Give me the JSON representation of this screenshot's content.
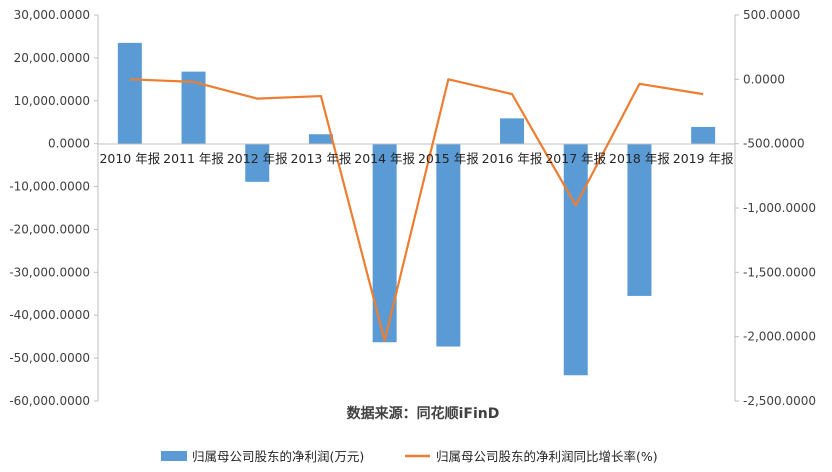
{
  "chart_data": {
    "type": "bar",
    "categories": [
      "2010 年报",
      "2011 年报",
      "2012 年报",
      "2013 年报",
      "2014 年报",
      "2015 年报",
      "2016 年报",
      "2017 年报",
      "2018 年报",
      "2019 年报"
    ],
    "series": [
      {
        "name": "归属母公司股东的净利润(万元)",
        "type": "bar",
        "axis": "left",
        "color": "#5b9bd5",
        "values": [
          23500,
          16800,
          -8900,
          2200,
          -46300,
          -47300,
          5900,
          -54000,
          -35500,
          3900
        ]
      },
      {
        "name": "归属母公司股东的净利润同比增长率(%)",
        "type": "line",
        "axis": "right",
        "color": "#ed7d31",
        "values": [
          0,
          -20,
          -150,
          -130,
          -2030,
          0,
          -115,
          -980,
          -35,
          -115
        ]
      }
    ],
    "y_left": {
      "ylim": [
        -60000,
        30000
      ],
      "ticks": [
        30000,
        20000,
        10000,
        0,
        -10000,
        -20000,
        -30000,
        -40000,
        -50000,
        -60000
      ],
      "tick_labels": [
        "30,000.0000",
        "20,000.0000",
        "10,000.0000",
        "0.0000",
        "-10,000.0000",
        "-20,000.0000",
        "-30,000.0000",
        "-40,000.0000",
        "-50,000.0000",
        "-60,000.0000"
      ]
    },
    "y_right": {
      "ylim": [
        -2500,
        500
      ],
      "ticks": [
        500,
        0,
        -500,
        -1000,
        -1500,
        -2000,
        -2500
      ],
      "tick_labels": [
        "500.0000",
        "0.0000",
        "-500.0000",
        "-1,000.0000",
        "-1,500.0000",
        "-2,000.0000",
        "-2,500.0000"
      ]
    },
    "source": "数据来源：同花顺iFinD",
    "legend": "bottom",
    "grid": false
  }
}
